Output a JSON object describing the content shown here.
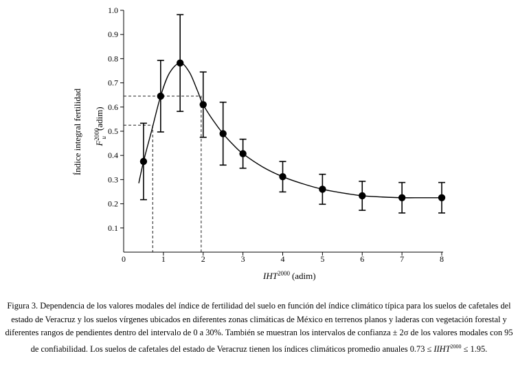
{
  "chart_data": {
    "type": "line",
    "x": [
      0.5,
      0.93,
      1.42,
      2.0,
      2.5,
      3.0,
      4.0,
      5.0,
      6.0,
      7.0,
      8.0
    ],
    "y": [
      0.375,
      0.645,
      0.782,
      0.61,
      0.49,
      0.407,
      0.312,
      0.26,
      0.233,
      0.225,
      0.225
    ],
    "error": [
      0.158,
      0.148,
      0.2,
      0.135,
      0.13,
      0.06,
      0.063,
      0.062,
      0.06,
      0.063,
      0.063
    ],
    "curve": {
      "x": [
        0.38,
        0.5,
        0.7,
        0.93,
        1.15,
        1.42,
        1.65,
        1.85,
        2.0,
        2.25,
        2.5,
        2.75,
        3.0,
        3.5,
        4.0,
        4.5,
        5.0,
        5.5,
        6.0,
        6.5,
        7.0,
        7.5,
        8.0
      ],
      "y": [
        0.285,
        0.375,
        0.5,
        0.645,
        0.74,
        0.782,
        0.745,
        0.67,
        0.61,
        0.545,
        0.49,
        0.445,
        0.407,
        0.352,
        0.312,
        0.283,
        0.26,
        0.245,
        0.233,
        0.228,
        0.225,
        0.225,
        0.225
      ]
    },
    "reference_lines": [
      {
        "x": 0.73,
        "y": 0.525
      },
      {
        "x": 1.95,
        "y": 0.645
      }
    ],
    "xlim": [
      0,
      8
    ],
    "ylim": [
      0,
      1.0
    ],
    "x_ticks": [
      "0",
      "1",
      "2",
      "3",
      "4",
      "5",
      "6",
      "7",
      "8"
    ],
    "y_ticks": [
      "0.1",
      "0.2",
      "0.3",
      "0.4",
      "0.5",
      "0.6",
      "0.7",
      "0.8",
      "0.9",
      "1.0"
    ],
    "xlabel_main": "IHT",
    "xlabel_sup": "2000",
    "xlabel_unit": "(adim)",
    "ylabel_line1": "Índice integral fertilidad",
    "ylabel_symbol": "F",
    "ylabel_sup": "2000",
    "ylabel_sub": "u",
    "ylabel_unit": "(adim)"
  },
  "caption": {
    "part1": "Figura 3. Dependencia de los valores modales del índice de fertilidad del suelo  en función del índice climático  típica para los suelos de cafetales del estado de Veracruz y los suelos vírgenes ubicados en diferentes zonas climáticas de México en terrenos planos y laderas con vegetación forestal y diferentes rangos de pendientes dentro del intervalo de 0 a 30%. También se muestran los intervalos de confianza ± 2σ de los valores modales con 95 de confiabilidad.  Los suelos de cafetales del estado de Veracruz tienen los índices climáticos promedio anuales 0.73 ≤ ",
    "ital": "IIHT",
    "sup": "2000",
    "part2": " ≤ 1.95."
  }
}
